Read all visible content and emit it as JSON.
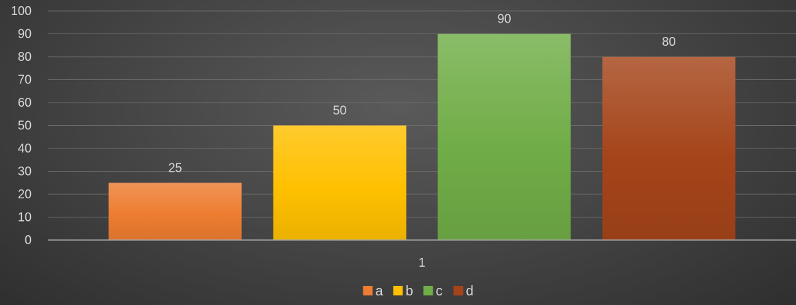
{
  "chart_data": {
    "type": "bar",
    "categories": [
      "1"
    ],
    "series": [
      {
        "name": "a",
        "values": [
          25
        ],
        "color": "#ed7d31"
      },
      {
        "name": "b",
        "values": [
          50
        ],
        "color": "#ffc000"
      },
      {
        "name": "c",
        "values": [
          90
        ],
        "color": "#70ad47"
      },
      {
        "name": "d",
        "values": [
          80
        ],
        "color": "#a5441a"
      }
    ],
    "title": "",
    "xlabel": "",
    "ylabel": "",
    "ylim": [
      0,
      100
    ],
    "yticks": [
      0,
      10,
      20,
      30,
      40,
      50,
      60,
      70,
      80,
      90,
      100
    ],
    "data_labels": true,
    "grid": true,
    "legend": "bottom"
  }
}
